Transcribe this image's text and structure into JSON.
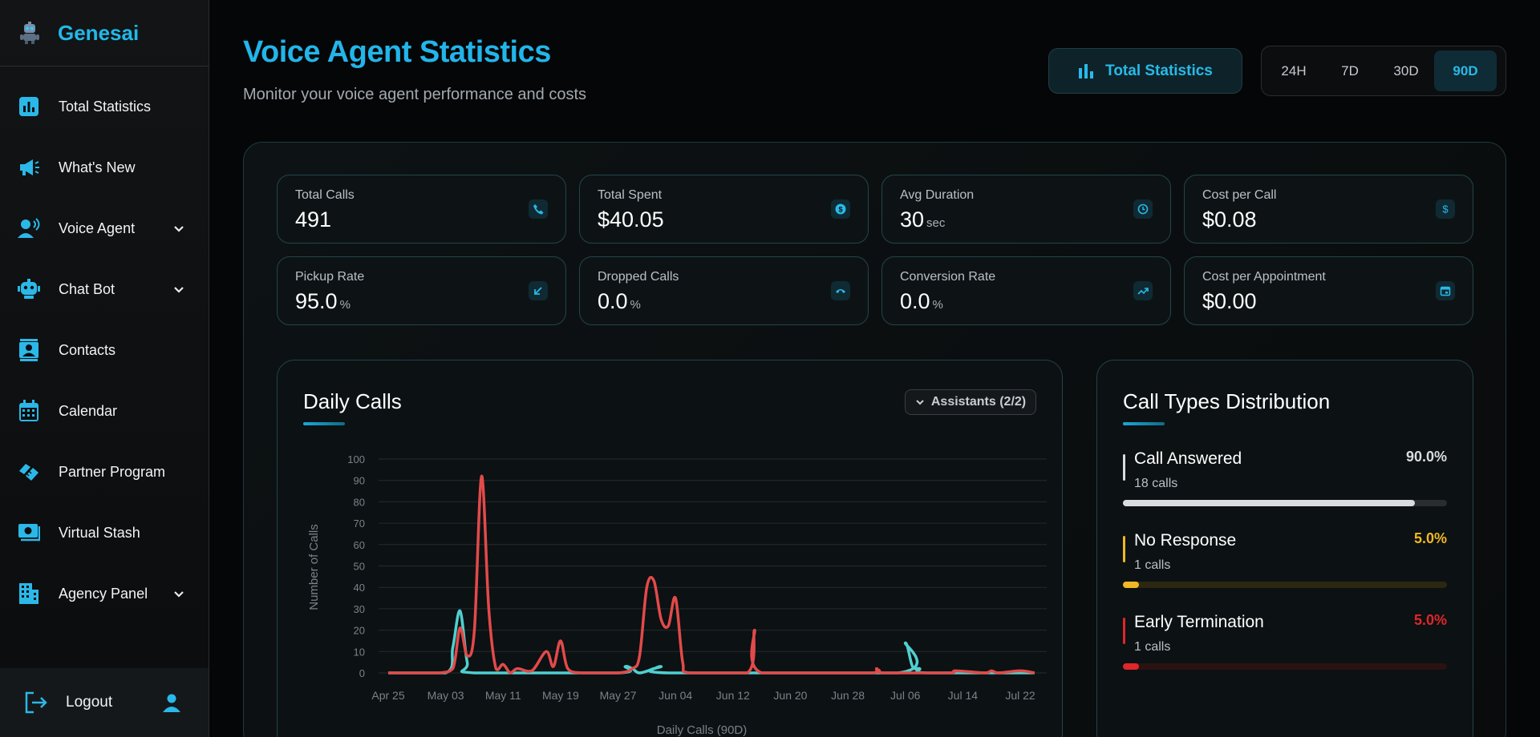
{
  "app": {
    "name": "Genesai"
  },
  "sidebar": {
    "items": [
      {
        "label": "Total Statistics",
        "icon": "bar-chart-icon",
        "has_submenu": false
      },
      {
        "label": "What's New",
        "icon": "megaphone-icon",
        "has_submenu": false
      },
      {
        "label": "Voice Agent",
        "icon": "voice-agent-icon",
        "has_submenu": true
      },
      {
        "label": "Chat Bot",
        "icon": "robot-icon",
        "has_submenu": true
      },
      {
        "label": "Contacts",
        "icon": "contacts-icon",
        "has_submenu": false
      },
      {
        "label": "Calendar",
        "icon": "calendar-icon",
        "has_submenu": false
      },
      {
        "label": "Partner Program",
        "icon": "handshake-icon",
        "has_submenu": false
      },
      {
        "label": "Virtual Stash",
        "icon": "money-icon",
        "has_submenu": false
      },
      {
        "label": "Agency Panel",
        "icon": "building-icon",
        "has_submenu": true
      }
    ],
    "logout_label": "Logout"
  },
  "header": {
    "title": "Voice Agent Statistics",
    "subtitle": "Monitor your voice agent performance and costs",
    "stats_button": "Total Statistics",
    "ranges": [
      "24H",
      "7D",
      "30D",
      "90D"
    ],
    "active_range": "90D"
  },
  "cards": [
    {
      "label": "Total Calls",
      "value": "491",
      "unit": "",
      "icon": "phone-icon"
    },
    {
      "label": "Total Spent",
      "value": "$40.05",
      "unit": "",
      "icon": "coin-icon"
    },
    {
      "label": "Avg Duration",
      "value": "30",
      "unit": "sec",
      "icon": "clock-icon"
    },
    {
      "label": "Cost per Call",
      "value": "$0.08",
      "unit": "",
      "icon": "dollar-icon"
    },
    {
      "label": "Pickup Rate",
      "value": "95.0",
      "unit": "%",
      "icon": "incoming-call-icon"
    },
    {
      "label": "Dropped Calls",
      "value": "0.0",
      "unit": "%",
      "icon": "hangup-icon"
    },
    {
      "label": "Conversion Rate",
      "value": "0.0",
      "unit": "%",
      "icon": "trending-up-icon"
    },
    {
      "label": "Cost per Appointment",
      "value": "$0.00",
      "unit": "",
      "icon": "calendar-small-icon"
    }
  ],
  "daily_calls": {
    "title": "Daily Calls",
    "assistants_button": "Assistants (2/2)"
  },
  "distribution": {
    "title": "Call Types Distribution",
    "items": [
      {
        "name": "Call Answered",
        "count": "18 calls",
        "percent": "90.0%",
        "fraction": 0.9,
        "color": "#d9dcdf",
        "track": "#2a2d30"
      },
      {
        "name": "No Response",
        "count": "1 calls",
        "percent": "5.0%",
        "fraction": 0.05,
        "color": "#f0b823",
        "track": "#2c2710"
      },
      {
        "name": "Early Termination",
        "count": "1 calls",
        "percent": "5.0%",
        "fraction": 0.05,
        "color": "#e0262a",
        "track": "#2a1213"
      }
    ]
  },
  "chart_data": {
    "type": "line",
    "title": "",
    "xlabel": "Daily Calls (90D)",
    "ylabel": "Number of Calls",
    "ylim": [
      0,
      100
    ],
    "yticks": [
      0,
      10,
      20,
      30,
      40,
      50,
      60,
      70,
      80,
      90,
      100
    ],
    "xtick_labels": [
      "Apr 25",
      "May 03",
      "May 11",
      "May 19",
      "May 27",
      "Jun 04",
      "Jun 12",
      "Jun 20",
      "Jun 28",
      "Jul 06",
      "Jul 14",
      "Jul 22"
    ],
    "grid": true,
    "series": [
      {
        "color": "#e24a4a",
        "points": [
          [
            "Apr 25",
            0
          ],
          [
            "Apr 30",
            0
          ],
          [
            "May 02",
            0
          ],
          [
            "May 04",
            2
          ],
          [
            "May 05",
            21
          ],
          [
            "May 06",
            8
          ],
          [
            "May 07",
            20
          ],
          [
            "May 08",
            92
          ],
          [
            "May 09",
            30
          ],
          [
            "May 10",
            2
          ],
          [
            "May 11",
            4
          ],
          [
            "May 12",
            0
          ],
          [
            "May 13",
            2
          ],
          [
            "May 15",
            1
          ],
          [
            "May 17",
            10
          ],
          [
            "May 18",
            3
          ],
          [
            "May 19",
            15
          ],
          [
            "May 20",
            2
          ],
          [
            "May 22",
            0
          ],
          [
            "May 27",
            0
          ],
          [
            "May 29",
            2
          ],
          [
            "May 30",
            8
          ],
          [
            "May 31",
            40
          ],
          [
            "Jun 01",
            43
          ],
          [
            "Jun 02",
            25
          ],
          [
            "Jun 03",
            22
          ],
          [
            "Jun 04",
            35
          ],
          [
            "Jun 05",
            5
          ],
          [
            "Jun 06",
            0
          ],
          [
            "Jun 14",
            0
          ],
          [
            "Jun 15",
            20
          ],
          [
            "Jun 16",
            0
          ],
          [
            "Jul 01",
            0
          ],
          [
            "Jul 02",
            2
          ],
          [
            "Jul 03",
            0
          ],
          [
            "Jul 12",
            0
          ],
          [
            "Jul 13",
            1
          ],
          [
            "Jul 17",
            0
          ],
          [
            "Jul 18",
            1
          ],
          [
            "Jul 19",
            0
          ],
          [
            "Jul 22",
            1
          ],
          [
            "Jul 24",
            0
          ]
        ]
      },
      {
        "color": "#4fd0d0",
        "points": [
          [
            "Apr 25",
            0
          ],
          [
            "May 03",
            0
          ],
          [
            "May 04",
            12
          ],
          [
            "May 05",
            29
          ],
          [
            "May 06",
            5
          ],
          [
            "May 07",
            0
          ],
          [
            "May 27",
            0
          ],
          [
            "May 28",
            3
          ],
          [
            "May 29",
            2
          ],
          [
            "May 30",
            0
          ],
          [
            "Jun 01",
            2
          ],
          [
            "Jun 02",
            3
          ],
          [
            "Jun 03",
            0
          ],
          [
            "Jul 05",
            0
          ],
          [
            "Jul 06",
            14
          ],
          [
            "Jul 07",
            3
          ],
          [
            "Jul 08",
            2
          ],
          [
            "Jul 09",
            0
          ],
          [
            "Jul 24",
            0
          ]
        ]
      }
    ]
  }
}
